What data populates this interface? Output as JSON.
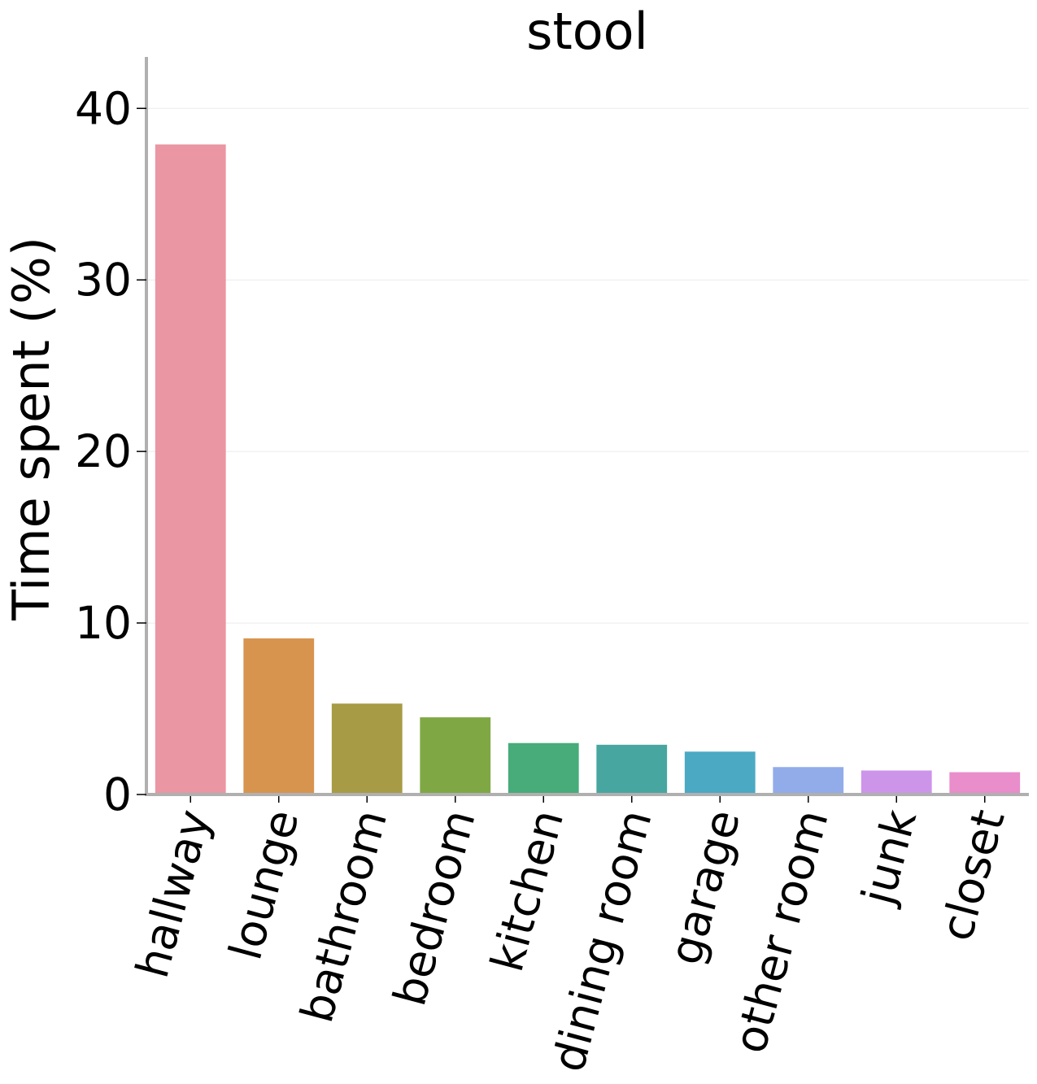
{
  "chart_data": {
    "type": "bar",
    "title": "stool",
    "xlabel": "",
    "ylabel": "Time spent (%)",
    "ylim": [
      0,
      43
    ],
    "yticks": [
      0,
      10,
      20,
      30,
      40
    ],
    "grid": "horizontal",
    "legend": "none",
    "categories": [
      "hallway",
      "lounge",
      "bathroom",
      "bedroom",
      "kitchen",
      "dining room",
      "garage",
      "other room",
      "junk",
      "closet"
    ],
    "values": [
      37.9,
      9.1,
      5.3,
      4.5,
      3.0,
      2.9,
      2.5,
      1.6,
      1.4,
      1.3
    ],
    "colors": [
      "#ea96a3",
      "#d6944e",
      "#a89b45",
      "#7fa844",
      "#47ac7a",
      "#48a6a0",
      "#4ba9c4",
      "#92acea",
      "#cd95ea",
      "#e98dcb"
    ],
    "axis_color": "#b0b0b0",
    "grid_color": "#ebebeb"
  }
}
